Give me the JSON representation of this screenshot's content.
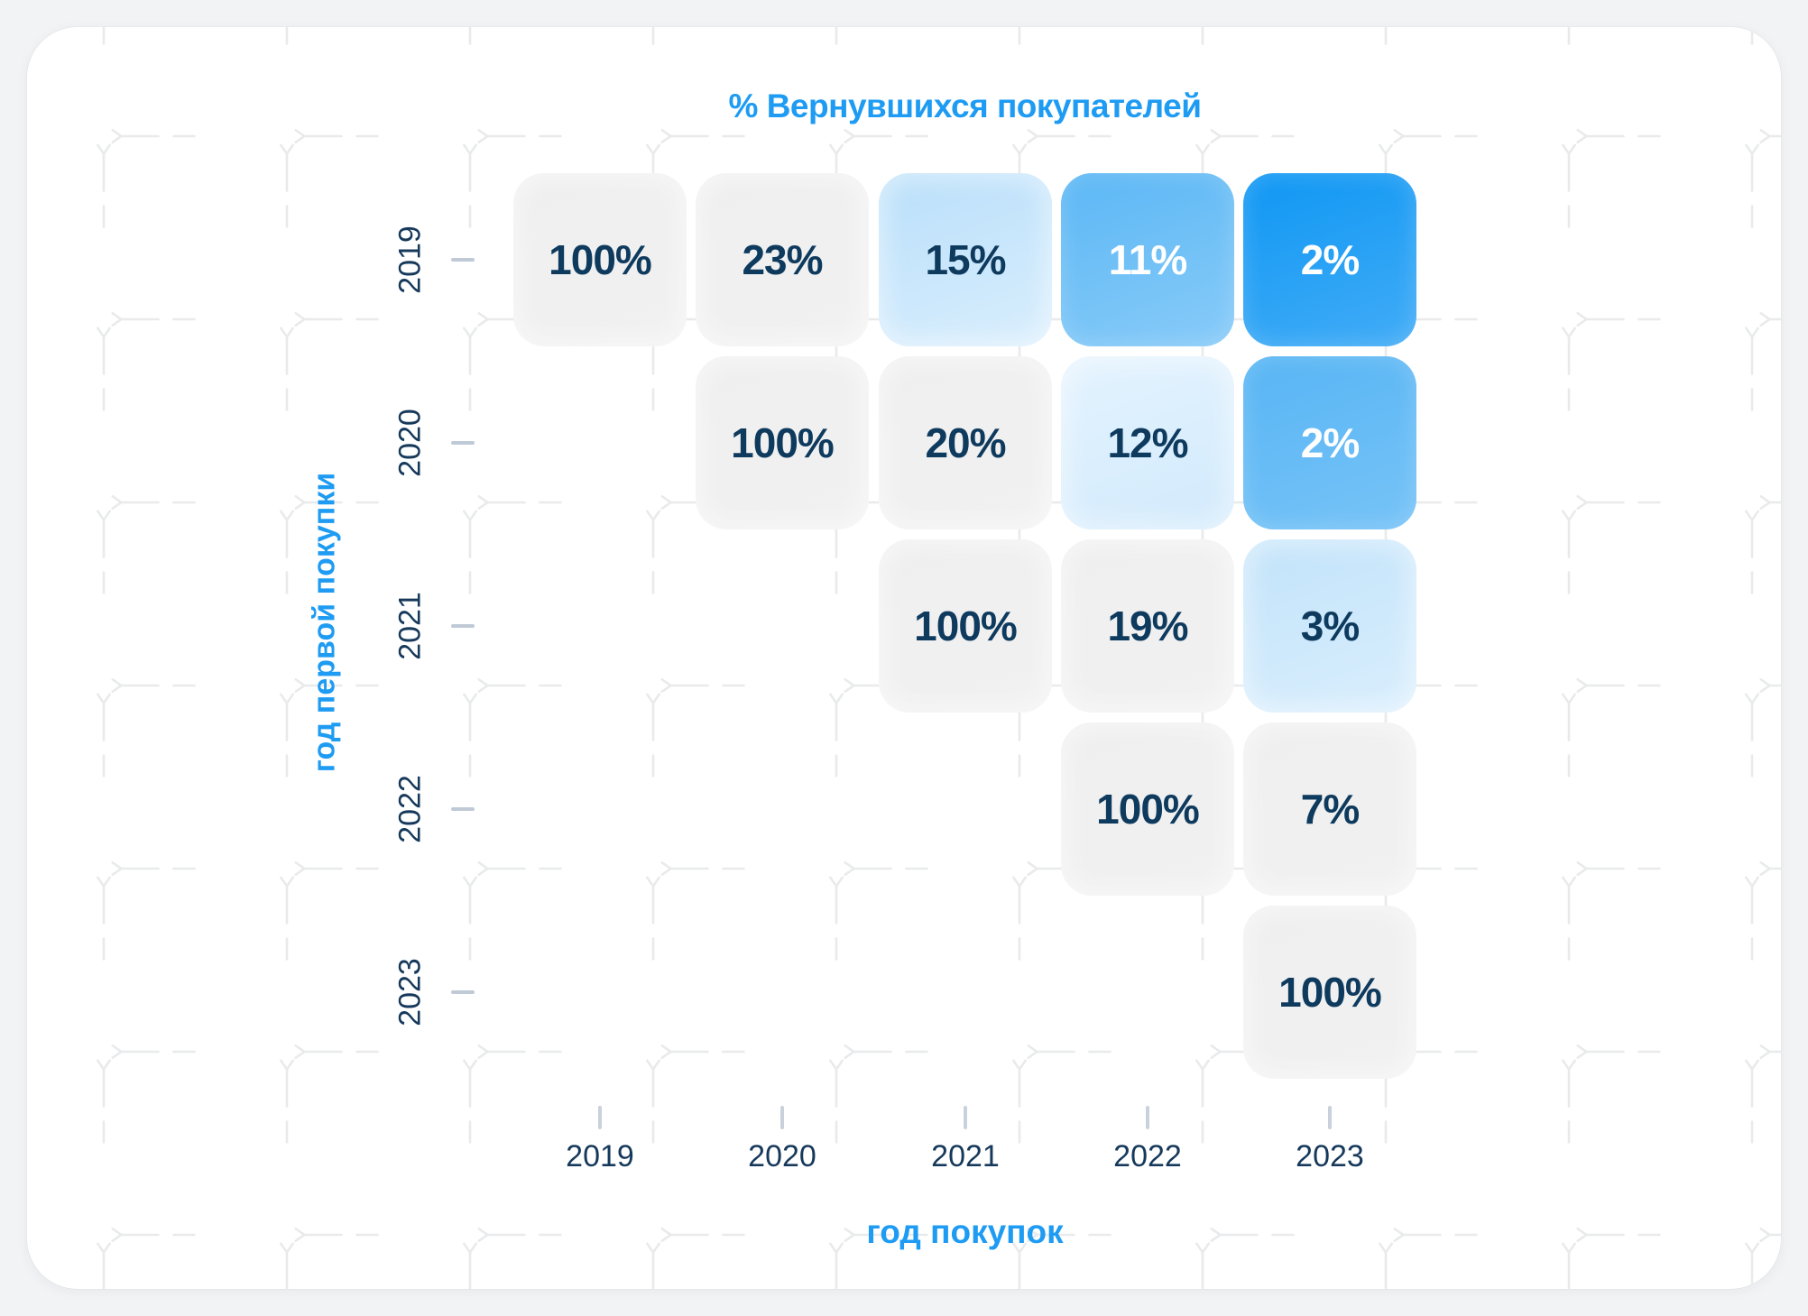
{
  "page": {
    "background_color": "#F2F3F5",
    "card_background_color": "#FFFFFF"
  },
  "colors": {
    "accent_blue": "#1E9BF2",
    "navy_text": "#0E3A5E",
    "axis_tick": "#BFCAD6",
    "grid_pattern": "#E9EAEB",
    "white_text": "#FFFFFF"
  },
  "palette": {
    "gray": {
      "bg": [
        "#EFEFEF",
        "#F1F1F1"
      ],
      "text": "#0E3A5E",
      "style": "soft"
    },
    "blue50": {
      "bg": [
        "#E4F3FE",
        "#D2EAFC"
      ],
      "text": "#0E3A5E",
      "style": "soft"
    },
    "blue100": {
      "bg": [
        "#B9DFFA",
        "#D9EEFD"
      ],
      "text": "#0E3A5E",
      "style": "soft"
    },
    "blue150": {
      "bg": [
        "#C2E3FA",
        "#D9EEFD"
      ],
      "text": "#0E3A5E",
      "style": "soft"
    },
    "blue400": {
      "bg": [
        "#57B5F4",
        "#77C3F7"
      ],
      "text": "#FFFFFF",
      "style": "vivid"
    },
    "blue500": {
      "bg": [
        "#5BB7F5",
        "#88CBF8"
      ],
      "text": "#FFFFFF",
      "style": "vivid"
    },
    "blue700": {
      "bg": [
        "#0F97F4",
        "#42ACF6"
      ],
      "text": "#FFFFFF",
      "style": "vivid"
    }
  },
  "chart_data": {
    "type": "heatmap",
    "title": "% Вернувшихся покупателей",
    "x_axis": {
      "title": "год покупок",
      "labels": [
        "2019",
        "2020",
        "2021",
        "2022",
        "2023"
      ]
    },
    "y_axis": {
      "title": "год первой покупки",
      "labels": [
        "2019",
        "2020",
        "2021",
        "2022",
        "2023"
      ]
    },
    "matrix_percent": [
      [
        100,
        23,
        15,
        11,
        2
      ],
      [
        null,
        100,
        20,
        12,
        2
      ],
      [
        null,
        null,
        100,
        19,
        3
      ],
      [
        null,
        null,
        null,
        100,
        7
      ],
      [
        null,
        null,
        null,
        null,
        100
      ]
    ],
    "cells": [
      {
        "row": 0,
        "col": 0,
        "label": "100%",
        "tone": "gray"
      },
      {
        "row": 0,
        "col": 1,
        "label": "23%",
        "tone": "gray"
      },
      {
        "row": 0,
        "col": 2,
        "label": "15%",
        "tone": "blue100"
      },
      {
        "row": 0,
        "col": 3,
        "label": "11%",
        "tone": "blue500"
      },
      {
        "row": 0,
        "col": 4,
        "label": "2%",
        "tone": "blue700"
      },
      {
        "row": 1,
        "col": 1,
        "label": "100%",
        "tone": "gray"
      },
      {
        "row": 1,
        "col": 2,
        "label": "20%",
        "tone": "gray"
      },
      {
        "row": 1,
        "col": 3,
        "label": "12%",
        "tone": "blue50"
      },
      {
        "row": 1,
        "col": 4,
        "label": "2%",
        "tone": "blue400"
      },
      {
        "row": 2,
        "col": 2,
        "label": "100%",
        "tone": "gray"
      },
      {
        "row": 2,
        "col": 3,
        "label": "19%",
        "tone": "gray"
      },
      {
        "row": 2,
        "col": 4,
        "label": "3%",
        "tone": "blue150"
      },
      {
        "row": 3,
        "col": 3,
        "label": "100%",
        "tone": "gray"
      },
      {
        "row": 3,
        "col": 4,
        "label": "7%",
        "tone": "gray"
      },
      {
        "row": 4,
        "col": 4,
        "label": "100%",
        "tone": "gray"
      }
    ],
    "legend": null,
    "grid": "dashed-decorative"
  }
}
